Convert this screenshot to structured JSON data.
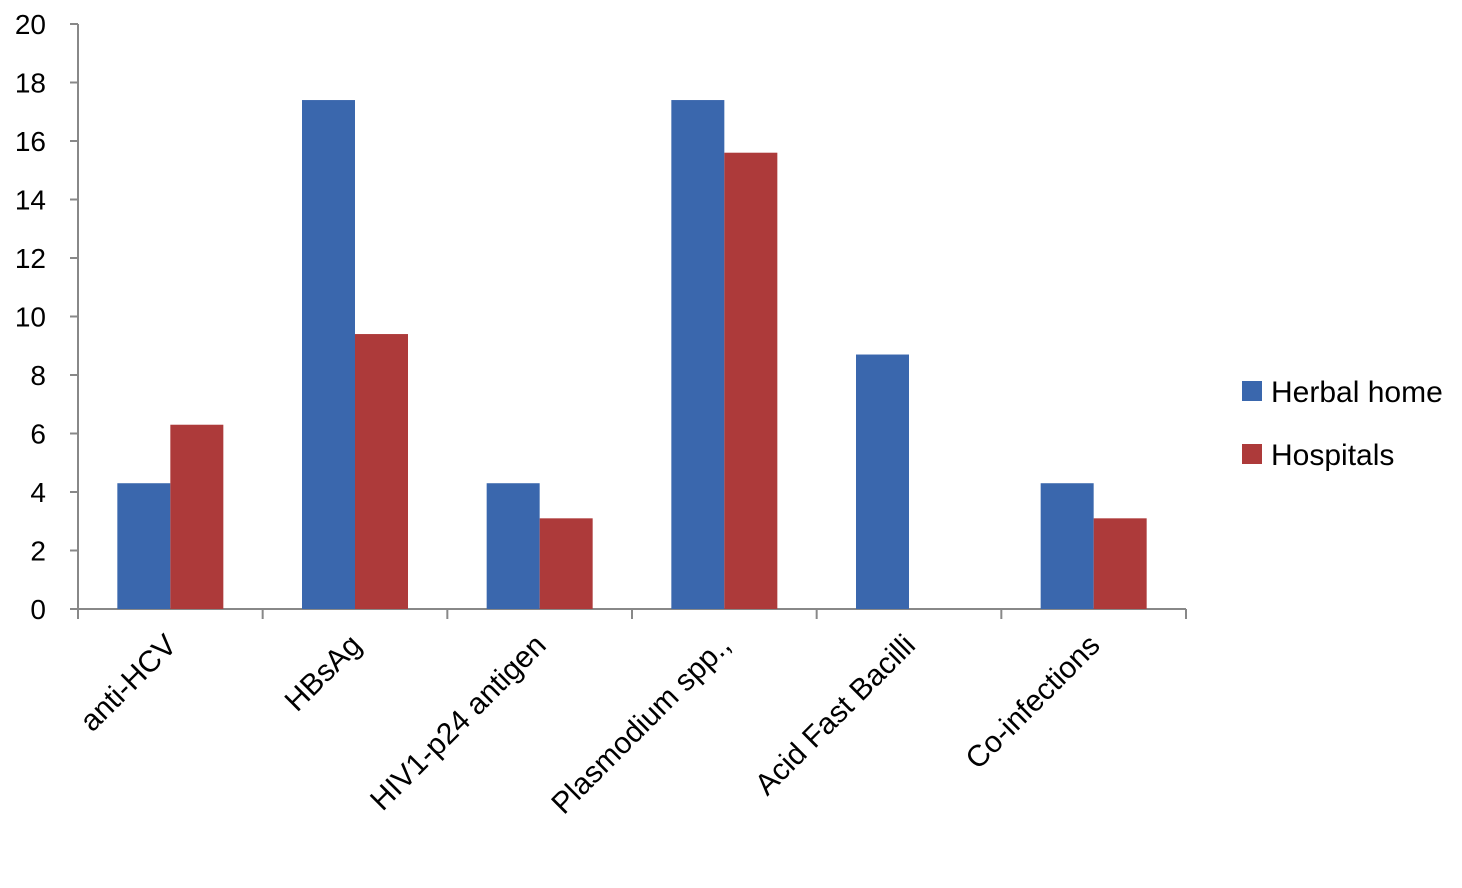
{
  "chart_data": {
    "type": "bar",
    "title": "",
    "xlabel": "",
    "ylabel": "",
    "ylim": [
      0,
      20
    ],
    "yticks": [
      0,
      2,
      4,
      6,
      8,
      10,
      12,
      14,
      16,
      18,
      20
    ],
    "categories": [
      "anti-HCV",
      "HBsAg",
      "HIV1-p24 antigen",
      "Plasmodium spp.,",
      "Acid Fast Bacilli",
      "Co-infections"
    ],
    "series": [
      {
        "name": "Herbal home",
        "color": "#3A67AD",
        "values": [
          4.3,
          17.4,
          4.3,
          17.4,
          8.7,
          4.3
        ]
      },
      {
        "name": "Hospitals",
        "color": "#AD3A3A",
        "values": [
          6.3,
          9.4,
          3.1,
          15.6,
          0,
          3.1
        ]
      }
    ],
    "grid": false,
    "legend_position": "right"
  }
}
